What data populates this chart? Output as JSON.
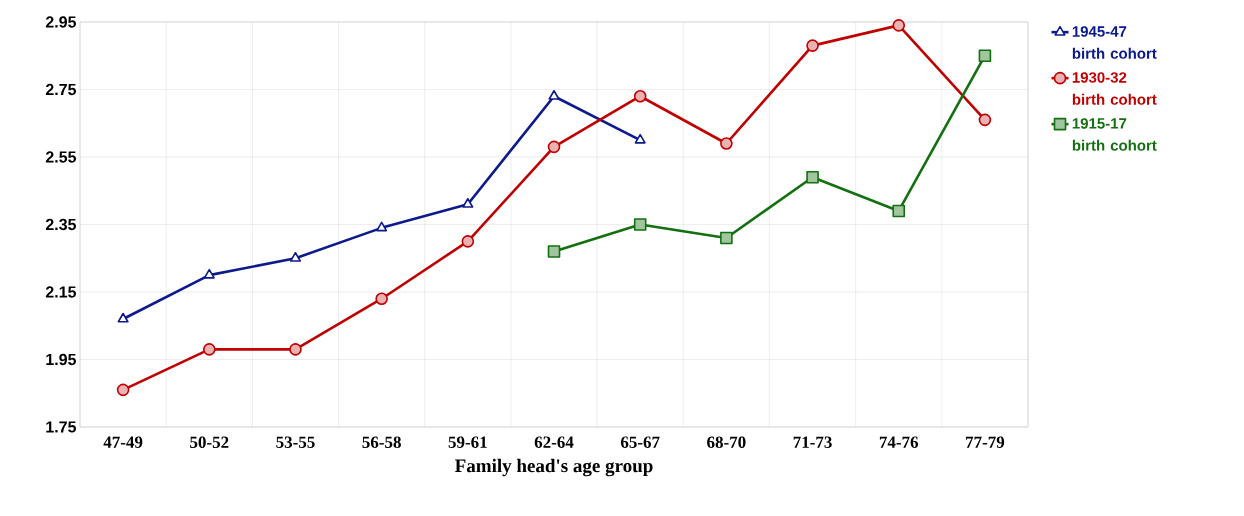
{
  "chart_data": {
    "type": "line",
    "xlabel": "Family head's age group",
    "categories": [
      "47-49",
      "50-52",
      "53-55",
      "56-58",
      "59-61",
      "62-64",
      "65-67",
      "68-70",
      "71-73",
      "74-76",
      "77-79"
    ],
    "series": [
      {
        "name": "1945-47 birth cohort",
        "color": "#0d1a8c",
        "marker": "triangle",
        "values": [
          2.07,
          2.2,
          2.25,
          2.34,
          2.41,
          2.73,
          2.6,
          null,
          null,
          null,
          null
        ]
      },
      {
        "name": "1930-32 birth cohort",
        "color": "#c00000",
        "marker": "circle",
        "values": [
          1.86,
          1.98,
          1.98,
          2.13,
          2.3,
          2.58,
          2.73,
          2.59,
          2.88,
          2.94,
          2.66
        ]
      },
      {
        "name": "1915-17 birth cohort",
        "color": "#137010",
        "marker": "square",
        "values": [
          null,
          null,
          null,
          null,
          null,
          2.27,
          2.35,
          2.31,
          2.49,
          2.39,
          2.85
        ]
      }
    ],
    "ylim": [
      1.75,
      2.95
    ],
    "yticks": [
      1.75,
      1.95,
      2.15,
      2.35,
      2.55,
      2.75,
      2.95
    ],
    "grid": true,
    "legend": "right",
    "line_style": "solid"
  }
}
